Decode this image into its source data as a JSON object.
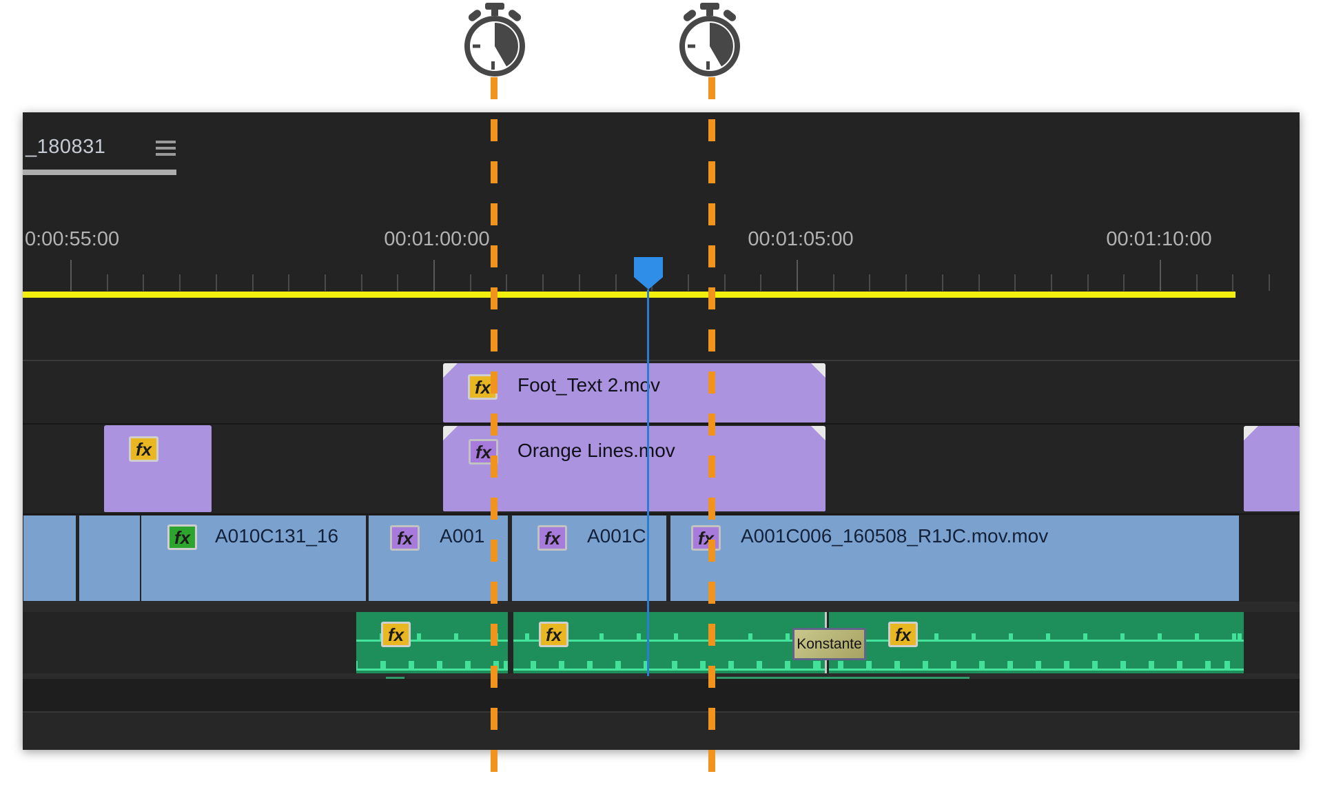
{
  "annotations": {
    "stopwatch_icon": "stopwatch",
    "guide_color": "#F0941E"
  },
  "timeline": {
    "tab": {
      "label": "_180831"
    },
    "ruler": {
      "labels": [
        "0:00:55:00",
        "00:01:00:00",
        "00:01:05:00",
        "00:01:10:00"
      ]
    },
    "work_area_color": "#F2EE0D",
    "playhead_color": "#2F8EE8",
    "fx_label": "fx",
    "tracks": {
      "v3_clips": [
        {
          "label": "Foot_Text 2.mov",
          "badge": "yellow"
        }
      ],
      "v2_clips": [
        {
          "label": "",
          "badge": "yellow"
        },
        {
          "label": "Orange Lines.mov",
          "badge": "violet"
        },
        {
          "label": "",
          "badge": "none"
        }
      ],
      "v1_clips": [
        {
          "label": "",
          "badge": "none"
        },
        {
          "label": "",
          "badge": "none"
        },
        {
          "label": "A010C131_16",
          "badge": "green"
        },
        {
          "label": "A001",
          "badge": "violet"
        },
        {
          "label": "A001C",
          "badge": "violet"
        },
        {
          "label": "A001C006_160508_R1JC.mov.mov",
          "badge": "violet"
        }
      ],
      "a1_clips": [
        {
          "badge": "yellow"
        },
        {
          "badge": "yellow"
        },
        {
          "badge": "yellow"
        }
      ],
      "a1_transition_label": "Konstante"
    },
    "clip_colors": {
      "video_overlay": "#AB93DF",
      "video_main": "#7BA2CF",
      "audio": "#1E8F5A"
    }
  }
}
